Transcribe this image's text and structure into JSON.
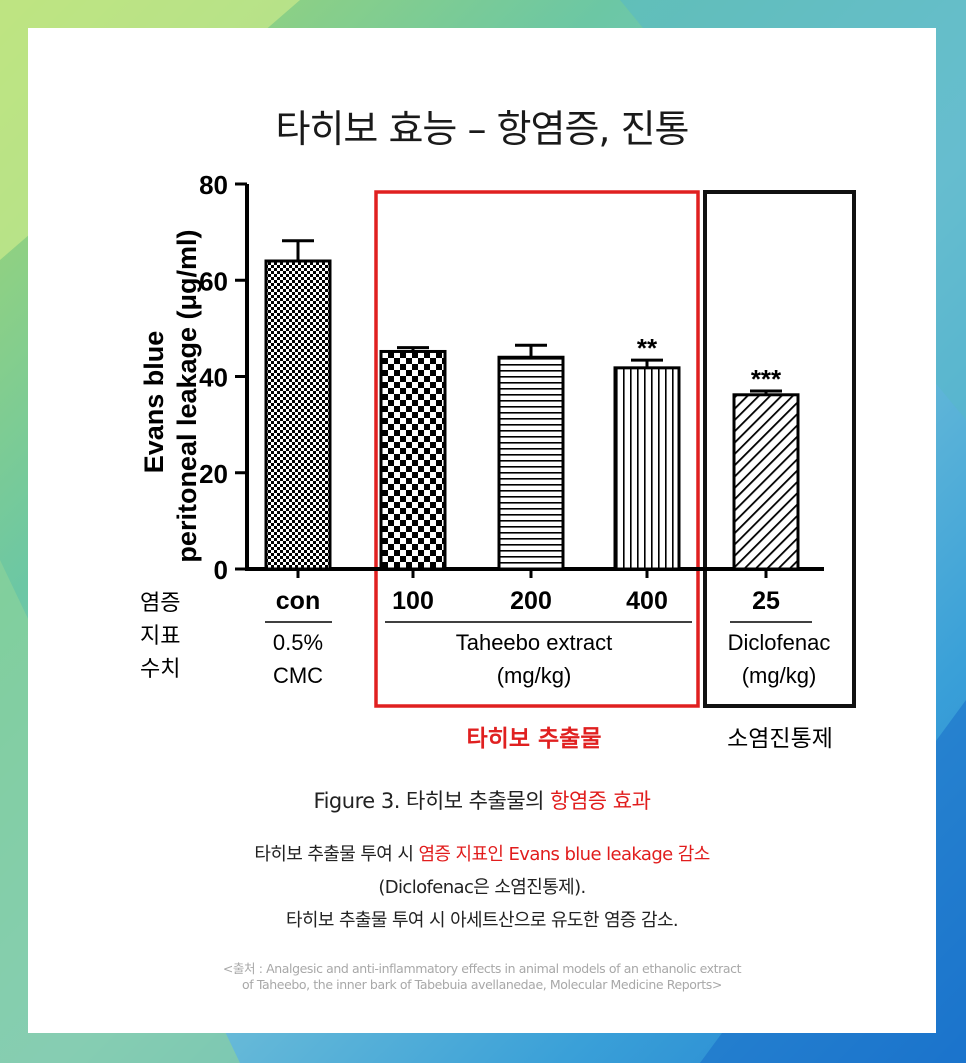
{
  "title": "타히보 효능 – 항염증, 진통",
  "chart_data": {
    "type": "bar",
    "ylabel_line1": "Evans blue",
    "ylabel_line2": "peritoneal leakage (μg/ml)",
    "ylim": [
      0,
      80
    ],
    "yticks": [
      "0",
      "20",
      "40",
      "60",
      "80"
    ],
    "row_label_lines": [
      "염증",
      "지표",
      "수치"
    ],
    "categories": [
      "con",
      "100",
      "200",
      "400",
      "25"
    ],
    "values": [
      64,
      45.2,
      44,
      41.8,
      36.2
    ],
    "errors": [
      4.2,
      0.8,
      2.5,
      1.6,
      0.8
    ],
    "significance": [
      "",
      "",
      "",
      "**",
      "***"
    ],
    "group_labels": [
      {
        "line1": "0.5%",
        "line2": "CMC"
      },
      {
        "line1": "Taheebo extract",
        "line2": "(mg/kg)"
      },
      {
        "line1": "Diclofenac",
        "line2": "(mg/kg)"
      }
    ],
    "annotation_taheebo": "타히보 추출물",
    "annotation_diclofenac": "소염진통제",
    "colors": {
      "taheebo_box": "#e02020",
      "diclofenac_box": "#111111"
    }
  },
  "caption": {
    "prefix": "Figure 3. 타히보 추출물의 ",
    "highlight": "항염증 효과"
  },
  "description": {
    "line1_prefix": "타히보 추출물 투여 시 ",
    "line1_highlight": "염증 지표인 Evans blue leakage 감소",
    "line2": "(Diclofenac은 소염진통제).",
    "line3": "타히보 추출물 투여 시 아세트산으로 유도한 염증 감소."
  },
  "source": {
    "line1": "<출처 : Analgesic and anti-inflammatory effects in animal models of an ethanolic extract",
    "line2": "of Taheebo, the inner bark of Tabebuia avellanedae, Molecular Medicine Reports>"
  }
}
